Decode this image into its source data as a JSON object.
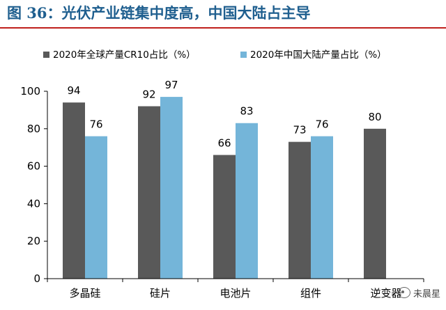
{
  "page": {
    "title": "图 36：光伏产业链集中度高，中国大陆占主导"
  },
  "watermark": {
    "text": "未晨星"
  },
  "colors": {
    "series1": "#595959",
    "series2": "#74b5d9",
    "title": "#1f5f8f",
    "rule": "#c0201c"
  },
  "chart_data": {
    "type": "bar",
    "title": "",
    "xlabel": "",
    "ylabel": "",
    "categories": [
      "多晶硅",
      "硅片",
      "电池片",
      "组件",
      "逆变器"
    ],
    "ylim": [
      0,
      100
    ],
    "yticks": [
      0,
      20,
      40,
      60,
      80,
      100
    ],
    "grid": false,
    "legend_position": "top",
    "series": [
      {
        "name": "2020年全球产量CR10占比（%）",
        "values": [
          94,
          92,
          66,
          73,
          80
        ],
        "color": "#595959"
      },
      {
        "name": "2020年中国大陆产量占比（%）",
        "values": [
          76,
          97,
          83,
          76,
          null
        ],
        "color": "#74b5d9"
      }
    ]
  }
}
